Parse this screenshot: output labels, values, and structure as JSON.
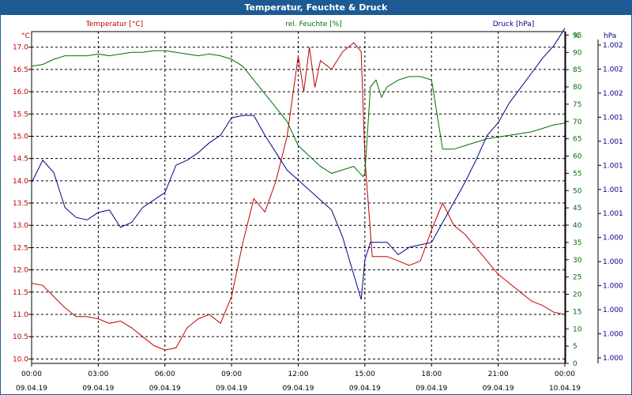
{
  "chart_data": {
    "type": "line",
    "title": "Temperatur, Feuchte & Druck",
    "legend": "top",
    "grid": true,
    "x_ticks": [
      {
        "time": "00:00",
        "date": "09.04.19"
      },
      {
        "time": "03:00",
        "date": "09.04.19"
      },
      {
        "time": "06:00",
        "date": "09.04.19"
      },
      {
        "time": "09:00",
        "date": "09.04.19"
      },
      {
        "time": "12:00",
        "date": "09.04.19"
      },
      {
        "time": "15:00",
        "date": "09.04.19"
      },
      {
        "time": "18:00",
        "date": "09.04.19"
      },
      {
        "time": "21:00",
        "date": "09.04.19"
      },
      {
        "time": "00:00",
        "date": "10.04.19"
      }
    ],
    "xlim": [
      "09.04.19 00:00",
      "10.04.19 00:00"
    ],
    "axes": {
      "temperature": {
        "unit": "°C",
        "ylim": [
          9.9,
          17.35
        ],
        "ticks": [
          "10.0",
          "10.5",
          "11.0",
          "11.5",
          "12.0",
          "12.5",
          "13.0",
          "13.5",
          "14.0",
          "14.5",
          "15.0",
          "15.5",
          "16.0",
          "16.5",
          "17.0"
        ],
        "color": "#c00000"
      },
      "humidity": {
        "unit": "%",
        "ylim": [
          0,
          96
        ],
        "ticks": [
          "0",
          "5",
          "10",
          "15",
          "20",
          "25",
          "30",
          "35",
          "40",
          "45",
          "50",
          "55",
          "60",
          "65",
          "70",
          "75",
          "80",
          "85",
          "90",
          "95"
        ],
        "color": "#007000"
      },
      "pressure": {
        "unit": "hPa",
        "ticks": [
          "1.000",
          "1.000",
          "1.000",
          "1.000",
          "1.000",
          "1.000",
          "1.001",
          "1.001",
          "1.001",
          "1.001",
          "1.001",
          "1.002",
          "1.002",
          "1.002"
        ],
        "color": "#00008b"
      }
    },
    "series": [
      {
        "name": "Temperatur [°C]",
        "axis": "temperature",
        "color": "#c00000",
        "x": [
          "09.04.19 00:00",
          "09.04.19 00:30",
          "09.04.19 01:00",
          "09.04.19 01:30",
          "09.04.19 02:00",
          "09.04.19 02:30",
          "09.04.19 03:00",
          "09.04.19 03:30",
          "09.04.19 04:00",
          "09.04.19 04:30",
          "09.04.19 05:00",
          "09.04.19 05:30",
          "09.04.19 06:00",
          "09.04.19 06:30",
          "09.04.19 07:00",
          "09.04.19 07:30",
          "09.04.19 08:00",
          "09.04.19 08:30",
          "09.04.19 09:00",
          "09.04.19 09:30",
          "09.04.19 10:00",
          "09.04.19 10:30",
          "09.04.19 11:00",
          "09.04.19 11:30",
          "09.04.19 12:00",
          "09.04.19 12:15",
          "09.04.19 12:30",
          "09.04.19 12:45",
          "09.04.19 13:00",
          "09.04.19 13:30",
          "09.04.19 14:00",
          "09.04.19 14:30",
          "09.04.19 14:50",
          "09.04.19 15:00",
          "09.04.19 15:20",
          "09.04.19 15:40",
          "09.04.19 16:00",
          "09.04.19 16:30",
          "09.04.19 17:00",
          "09.04.19 17:30",
          "09.04.19 18:00",
          "09.04.19 18:30",
          "09.04.19 19:00",
          "09.04.19 19:30",
          "09.04.19 20:00",
          "09.04.19 20:30",
          "09.04.19 21:00",
          "09.04.19 21:30",
          "09.04.19 22:00",
          "09.04.19 22:30",
          "09.04.19 23:00",
          "09.04.19 23:30",
          "10.04.19 00:00"
        ],
        "values": [
          11.7,
          11.65,
          11.4,
          11.15,
          10.95,
          10.95,
          10.9,
          10.8,
          10.85,
          10.7,
          10.5,
          10.3,
          10.2,
          10.25,
          10.7,
          10.9,
          11.0,
          10.8,
          11.4,
          12.6,
          13.6,
          13.3,
          14.0,
          15.0,
          16.8,
          16.0,
          17.0,
          16.1,
          16.7,
          16.5,
          16.9,
          17.1,
          16.9,
          14.5,
          12.3,
          12.3,
          12.3,
          12.2,
          12.1,
          12.2,
          12.9,
          13.5,
          13.0,
          12.8,
          12.5,
          12.2,
          11.9,
          11.7,
          11.5,
          11.3,
          11.2,
          11.05,
          11.0
        ]
      },
      {
        "name": "rel. Feuchte [%]",
        "axis": "humidity",
        "color": "#007000",
        "x": [
          "09.04.19 00:00",
          "09.04.19 00:30",
          "09.04.19 01:00",
          "09.04.19 01:30",
          "09.04.19 02:00",
          "09.04.19 02:30",
          "09.04.19 03:00",
          "09.04.19 03:30",
          "09.04.19 04:00",
          "09.04.19 04:30",
          "09.04.19 05:00",
          "09.04.19 05:30",
          "09.04.19 06:00",
          "09.04.19 06:30",
          "09.04.19 07:00",
          "09.04.19 07:30",
          "09.04.19 08:00",
          "09.04.19 08:30",
          "09.04.19 09:00",
          "09.04.19 09:30",
          "09.04.19 10:00",
          "09.04.19 10:30",
          "09.04.19 11:00",
          "09.04.19 11:30",
          "09.04.19 12:00",
          "09.04.19 12:30",
          "09.04.19 13:00",
          "09.04.19 13:30",
          "09.04.19 14:00",
          "09.04.19 14:30",
          "09.04.19 14:55",
          "09.04.19 15:00",
          "09.04.19 15:15",
          "09.04.19 15:30",
          "09.04.19 15:45",
          "09.04.19 16:00",
          "09.04.19 16:30",
          "09.04.19 17:00",
          "09.04.19 17:30",
          "09.04.19 18:00",
          "09.04.19 18:15",
          "09.04.19 18:30",
          "09.04.19 18:45",
          "09.04.19 19:00",
          "09.04.19 19:30",
          "09.04.19 20:00",
          "09.04.19 20:30",
          "09.04.19 21:00",
          "09.04.19 21:30",
          "09.04.19 22:00",
          "09.04.19 22:30",
          "09.04.19 23:00",
          "09.04.19 23:30",
          "10.04.19 00:00"
        ],
        "values": [
          86,
          86.5,
          88,
          89,
          89,
          89,
          89.5,
          89,
          89.5,
          90,
          90,
          90.5,
          90.5,
          90,
          89.5,
          89,
          89.5,
          89,
          88,
          86,
          82,
          78,
          74,
          70,
          63,
          60,
          57,
          55,
          56,
          57,
          54,
          55,
          80,
          82,
          77,
          80,
          82,
          83,
          83,
          82,
          72,
          62,
          62,
          62,
          63,
          64,
          65,
          65.5,
          66,
          66.5,
          67,
          68,
          69,
          69.5
        ]
      },
      {
        "name": "Druck [hPa]",
        "axis": "pressure",
        "color": "#00008b",
        "x": [
          "09.04.19 00:00",
          "09.04.19 00:30",
          "09.04.19 01:00",
          "09.04.19 01:30",
          "09.04.19 02:00",
          "09.04.19 02:30",
          "09.04.19 03:00",
          "09.04.19 03:30",
          "09.04.19 04:00",
          "09.04.19 04:30",
          "09.04.19 05:00",
          "09.04.19 05:30",
          "09.04.19 06:00",
          "09.04.19 06:30",
          "09.04.19 07:00",
          "09.04.19 07:30",
          "09.04.19 08:00",
          "09.04.19 08:30",
          "09.04.19 09:00",
          "09.04.19 09:30",
          "09.04.19 10:00",
          "09.04.19 10:30",
          "09.04.19 11:00",
          "09.04.19 11:30",
          "09.04.19 12:00",
          "09.04.19 12:30",
          "09.04.19 13:00",
          "09.04.19 13:30",
          "09.04.19 14:00",
          "09.04.19 14:30",
          "09.04.19 14:50",
          "09.04.19 15:00",
          "09.04.19 15:15",
          "09.04.19 15:30",
          "09.04.19 16:00",
          "09.04.19 16:30",
          "09.04.19 17:00",
          "09.04.19 17:30",
          "09.04.19 18:00",
          "09.04.19 18:30",
          "09.04.19 19:00",
          "09.04.19 19:30",
          "09.04.19 20:00",
          "09.04.19 20:30",
          "09.04.19 21:00",
          "09.04.19 21:30",
          "09.04.19 22:00",
          "09.04.19 22:30",
          "09.04.19 23:00",
          "09.04.19 23:30",
          "10.04.19 00:00"
        ],
        "values": [
          0.6,
          1.5,
          1.0,
          -0.4,
          -0.8,
          -0.9,
          -0.6,
          -0.5,
          -1.2,
          -1.0,
          -0.4,
          -0.1,
          0.2,
          1.3,
          1.5,
          1.8,
          2.2,
          2.5,
          3.2,
          3.3,
          3.3,
          2.5,
          1.8,
          1.1,
          0.7,
          0.3,
          -0.1,
          -0.5,
          -1.6,
          -3.1,
          -4.1,
          -2.5,
          -1.8,
          -1.8,
          -1.8,
          -2.3,
          -2.0,
          -1.9,
          -1.8,
          -1.0,
          -0.2,
          0.6,
          1.5,
          2.5,
          3.0,
          3.8,
          4.4,
          5.0,
          5.6,
          6.1,
          6.8
        ]
      }
    ]
  }
}
